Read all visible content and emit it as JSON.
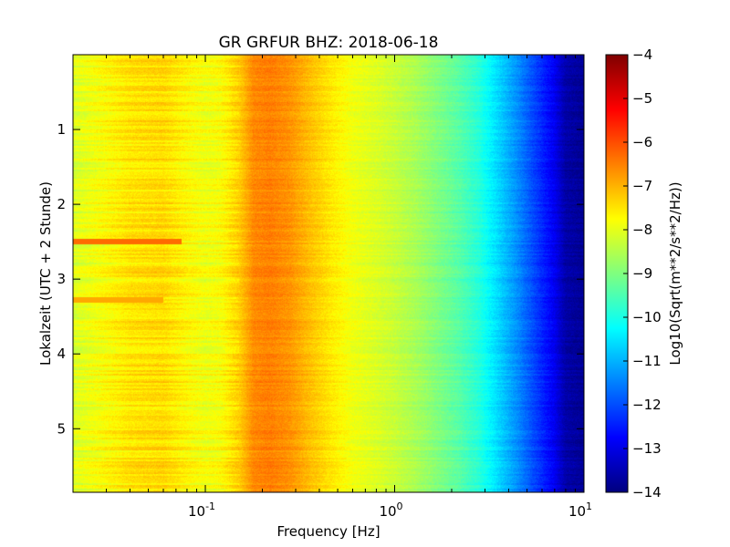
{
  "chart_data": {
    "type": "heatmap",
    "title": "GR GRFUR BHZ: 2018-06-18",
    "xlabel": "Frequency [Hz]",
    "ylabel": "Lokalzeit (UTC + 2 Stunde)",
    "x_scale": "log",
    "xlim": [
      0.02,
      10
    ],
    "ylim": [
      5.85,
      0
    ],
    "x_ticks": [
      {
        "value": 0.1,
        "base": "10",
        "exp": "-1"
      },
      {
        "value": 1,
        "base": "10",
        "exp": "0"
      },
      {
        "value": 10,
        "base": "10",
        "exp": "1"
      }
    ],
    "y_ticks": [
      {
        "value": 1,
        "label": "1"
      },
      {
        "value": 2,
        "label": "2"
      },
      {
        "value": 3,
        "label": "3"
      },
      {
        "value": 4,
        "label": "4"
      },
      {
        "value": 5,
        "label": "5"
      }
    ],
    "colorbar": {
      "label": "Log10(Sqrt(m**2/s**2/Hz))",
      "range": [
        -14,
        -4
      ],
      "colormap": "jet",
      "ticks": [
        {
          "value": -4,
          "label": "−4"
        },
        {
          "value": -5,
          "label": "−5"
        },
        {
          "value": -6,
          "label": "−6"
        },
        {
          "value": -7,
          "label": "−7"
        },
        {
          "value": -8,
          "label": "−8"
        },
        {
          "value": -9,
          "label": "−9"
        },
        {
          "value": -10,
          "label": "−10"
        },
        {
          "value": -11,
          "label": "−11"
        },
        {
          "value": -12,
          "label": "−12"
        },
        {
          "value": -13,
          "label": "−13"
        },
        {
          "value": -14,
          "label": "−14"
        }
      ]
    },
    "spectrum_profile": {
      "freq_hz": [
        0.02,
        0.04,
        0.06,
        0.08,
        0.1,
        0.12,
        0.15,
        0.18,
        0.22,
        0.28,
        0.35,
        0.45,
        0.6,
        0.8,
        1.0,
        1.3,
        1.7,
        2.2,
        2.8,
        3.5,
        4.5,
        5.5,
        7.0,
        8.0,
        10.0
      ],
      "log10_amp": [
        -8.1,
        -7.5,
        -7.4,
        -7.7,
        -7.9,
        -7.8,
        -7.3,
        -6.6,
        -6.5,
        -6.7,
        -7.1,
        -7.5,
        -7.9,
        -8.1,
        -8.3,
        -8.6,
        -9.0,
        -9.4,
        -9.9,
        -10.6,
        -11.4,
        -12.1,
        -12.9,
        -13.6,
        -13.8
      ]
    },
    "notable_events": [
      {
        "time": 2.49,
        "freq_range_hz": [
          0.02,
          0.075
        ],
        "log10_amp": -6.3
      },
      {
        "time": 3.27,
        "freq_range_hz": [
          0.02,
          0.06
        ],
        "log10_amp": -6.9
      }
    ]
  }
}
